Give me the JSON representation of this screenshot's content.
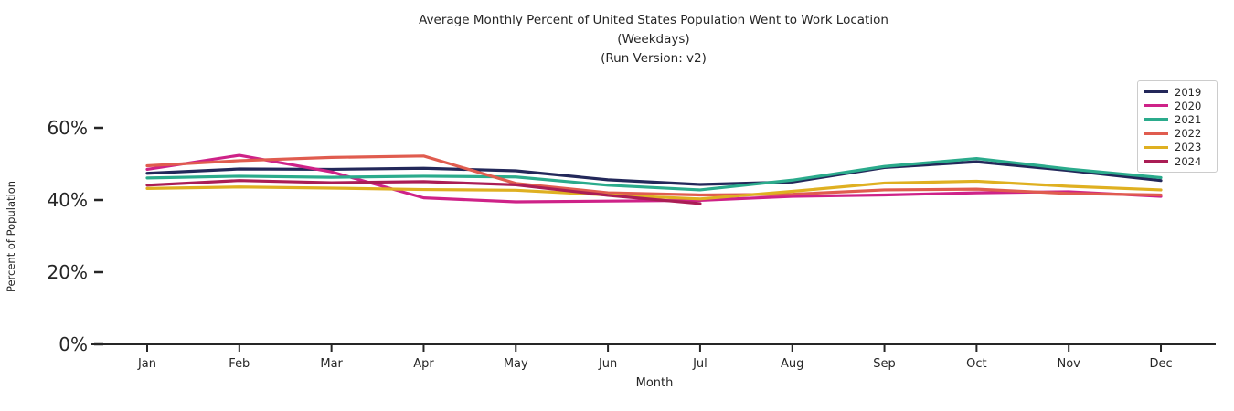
{
  "figure": {
    "title_lines": [
      "Average Monthly Percent of United States Population Went to Work Location",
      "(Weekdays)",
      "(Run Version: v2)"
    ],
    "background_color": "#ffffff",
    "text_color": "#262626"
  },
  "chart_data": {
    "type": "line",
    "title": "Average Monthly Percent of United States Population Went to Work Location (Weekdays) (Run Version: v2)",
    "xlabel": "Month",
    "ylabel": "Percent of Population",
    "categories": [
      "Jan",
      "Feb",
      "Mar",
      "Apr",
      "May",
      "Jun",
      "Jul",
      "Aug",
      "Sep",
      "Oct",
      "Nov",
      "Dec"
    ],
    "yticks": [
      0,
      20,
      40,
      60
    ],
    "ytick_labels": [
      "0%",
      "20%",
      "40%",
      "60%"
    ],
    "ylim": [
      0,
      70
    ],
    "grid": false,
    "legend_position": "upper right",
    "axis_color": "#262626",
    "series": [
      {
        "name": "2019",
        "color": "#23285a",
        "values": [
          47.4,
          48.6,
          48.5,
          48.8,
          48.1,
          45.6,
          44.3,
          45.0,
          49.0,
          50.6,
          48.2,
          45.4
        ]
      },
      {
        "name": "2020",
        "color": "#ce2288",
        "values": [
          48.5,
          52.4,
          47.8,
          40.6,
          39.5,
          39.7,
          39.9,
          41.0,
          41.4,
          42.0,
          42.3,
          41.0
        ]
      },
      {
        "name": "2021",
        "color": "#2bab8c",
        "values": [
          46.1,
          46.6,
          46.3,
          46.6,
          46.4,
          44.1,
          42.8,
          45.5,
          49.3,
          51.5,
          48.6,
          46.2
        ]
      },
      {
        "name": "2022",
        "color": "#e05c4f",
        "values": [
          49.5,
          50.9,
          51.8,
          52.2,
          44.6,
          42.0,
          41.4,
          41.6,
          42.8,
          43.0,
          41.8,
          41.4
        ]
      },
      {
        "name": "2023",
        "color": "#dfb021",
        "values": [
          43.2,
          43.6,
          43.3,
          42.9,
          42.7,
          41.4,
          40.3,
          42.4,
          44.7,
          45.2,
          43.8,
          42.8
        ]
      },
      {
        "name": "2024",
        "color": "#aa1d55",
        "values": [
          44.1,
          45.4,
          44.8,
          45.1,
          44.2,
          41.3,
          39.0
        ]
      }
    ]
  }
}
